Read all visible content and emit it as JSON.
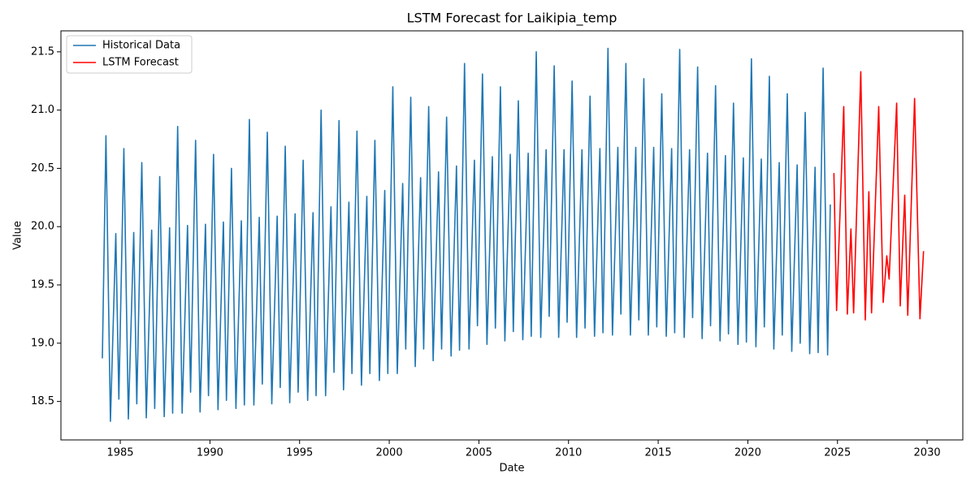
{
  "chart_data": {
    "type": "line",
    "title": "LSTM Forecast for Laikipia_temp",
    "x_label": "Date",
    "y_label": "Value",
    "xlim": [
      1981.69,
      2031.99
    ],
    "ylim": [
      18.17,
      21.68
    ],
    "xticks": [
      1985,
      1990,
      1995,
      2000,
      2005,
      2010,
      2015,
      2020,
      2025,
      2030
    ],
    "yticks": [
      18.5,
      {
        "value": 19.0,
        "label": "19.0"
      },
      19.5,
      {
        "value": 20.0,
        "label": "20.0"
      },
      20.5,
      {
        "value": 21.0,
        "label": "21.0"
      },
      21.5
    ],
    "grid": false,
    "legend": "upper left",
    "series": [
      {
        "name": "Historical Data",
        "color": "#1f77b4",
        "x": [
          1984,
          1984.2,
          1984.45,
          1984.75,
          1984.92,
          1985.2,
          1985.45,
          1985.75,
          1985.92,
          1986.2,
          1986.45,
          1986.75,
          1986.92,
          1987.2,
          1987.45,
          1987.75,
          1987.92,
          1988.2,
          1988.45,
          1988.75,
          1988.92,
          1989.2,
          1989.45,
          1989.75,
          1989.92,
          1990.2,
          1990.45,
          1990.75,
          1990.92,
          1991.2,
          1991.45,
          1991.75,
          1991.92,
          1992.2,
          1992.45,
          1992.75,
          1992.92,
          1993.2,
          1993.45,
          1993.75,
          1993.92,
          1994.2,
          1994.45,
          1994.75,
          1994.92,
          1995.2,
          1995.45,
          1995.75,
          1995.92,
          1996.2,
          1996.45,
          1996.75,
          1996.92,
          1997.2,
          1997.45,
          1997.75,
          1997.92,
          1998.2,
          1998.45,
          1998.75,
          1998.92,
          1999.2,
          1999.45,
          1999.75,
          1999.92,
          2000.2,
          2000.45,
          2000.75,
          2000.92,
          2001.2,
          2001.45,
          2001.75,
          2001.92,
          2002.2,
          2002.45,
          2002.75,
          2002.92,
          2003.2,
          2003.45,
          2003.75,
          2003.92,
          2004.2,
          2004.45,
          2004.75,
          2004.92,
          2005.2,
          2005.45,
          2005.75,
          2005.92,
          2006.2,
          2006.45,
          2006.75,
          2006.92,
          2007.2,
          2007.45,
          2007.75,
          2007.92,
          2008.2,
          2008.45,
          2008.75,
          2008.92,
          2009.2,
          2009.45,
          2009.75,
          2009.92,
          2010.2,
          2010.45,
          2010.75,
          2010.92,
          2011.2,
          2011.45,
          2011.75,
          2011.92,
          2012.2,
          2012.45,
          2012.75,
          2012.92,
          2013.2,
          2013.45,
          2013.75,
          2013.92,
          2014.2,
          2014.45,
          2014.75,
          2014.92,
          2015.2,
          2015.45,
          2015.75,
          2015.92,
          2016.2,
          2016.45,
          2016.75,
          2016.92,
          2017.2,
          2017.45,
          2017.75,
          2017.92,
          2018.2,
          2018.45,
          2018.75,
          2018.92,
          2019.2,
          2019.45,
          2019.75,
          2019.92,
          2020.2,
          2020.45,
          2020.75,
          2020.92,
          2021.2,
          2021.45,
          2021.75,
          2021.92,
          2022.2,
          2022.45,
          2022.75,
          2022.92,
          2023.2,
          2023.45,
          2023.75,
          2023.92,
          2024.2,
          2024.45,
          2024.6
        ],
        "values": [
          18.87,
          20.78,
          18.33,
          19.94,
          18.52,
          20.67,
          18.35,
          19.95,
          18.48,
          20.55,
          18.36,
          19.97,
          18.44,
          20.43,
          18.37,
          19.99,
          18.4,
          20.86,
          18.4,
          20.01,
          18.58,
          20.74,
          18.41,
          20.02,
          18.55,
          20.62,
          18.43,
          20.04,
          18.51,
          20.5,
          18.44,
          20.05,
          18.47,
          20.92,
          18.47,
          20.08,
          18.65,
          20.81,
          18.48,
          20.09,
          18.62,
          20.69,
          18.49,
          20.11,
          18.58,
          20.57,
          18.51,
          20.12,
          18.55,
          21.0,
          18.55,
          20.17,
          18.75,
          20.91,
          18.6,
          20.21,
          18.74,
          20.82,
          18.64,
          20.26,
          18.74,
          20.74,
          18.68,
          20.31,
          18.74,
          21.2,
          18.74,
          20.37,
          18.95,
          21.11,
          18.8,
          20.42,
          18.95,
          21.03,
          18.85,
          20.47,
          18.95,
          20.94,
          18.89,
          20.52,
          18.94,
          21.4,
          18.95,
          20.57,
          19.15,
          21.31,
          18.99,
          20.6,
          19.13,
          21.2,
          19.02,
          20.62,
          19.1,
          21.08,
          19.03,
          20.63,
          19.06,
          21.5,
          19.05,
          20.66,
          19.23,
          21.38,
          19.05,
          20.66,
          19.18,
          21.25,
          19.05,
          20.66,
          19.13,
          21.12,
          19.06,
          20.67,
          19.09,
          21.53,
          19.07,
          20.68,
          19.25,
          21.4,
          19.07,
          20.68,
          19.2,
          21.27,
          19.07,
          20.68,
          19.14,
          21.14,
          19.06,
          20.67,
          19.09,
          21.52,
          19.05,
          20.66,
          19.22,
          21.37,
          19.04,
          20.63,
          19.15,
          21.21,
          19.02,
          20.61,
          19.08,
          21.06,
          18.99,
          20.59,
          19.01,
          21.44,
          18.97,
          20.58,
          19.14,
          21.29,
          18.95,
          20.55,
          19.07,
          21.14,
          18.93,
          20.53,
          19.0,
          20.98,
          18.91,
          20.51,
          18.92,
          21.36,
          18.9,
          20.19
        ]
      },
      {
        "name": "LSTM Forecast",
        "color": "#ff0000",
        "x": [
          2024.8,
          2024.95,
          2025.35,
          2025.55,
          2025.75,
          2025.9,
          2026.3,
          2026.55,
          2026.75,
          2026.9,
          2027.3,
          2027.55,
          2027.75,
          2027.88,
          2028.3,
          2028.5,
          2028.75,
          2028.92,
          2029.3,
          2029.6,
          2029.8
        ],
        "values": [
          20.46,
          19.28,
          21.03,
          19.25,
          19.98,
          19.26,
          21.33,
          19.2,
          20.3,
          19.26,
          21.03,
          19.35,
          19.75,
          19.55,
          21.06,
          19.32,
          20.27,
          19.24,
          21.1,
          19.21,
          19.79
        ]
      }
    ]
  }
}
